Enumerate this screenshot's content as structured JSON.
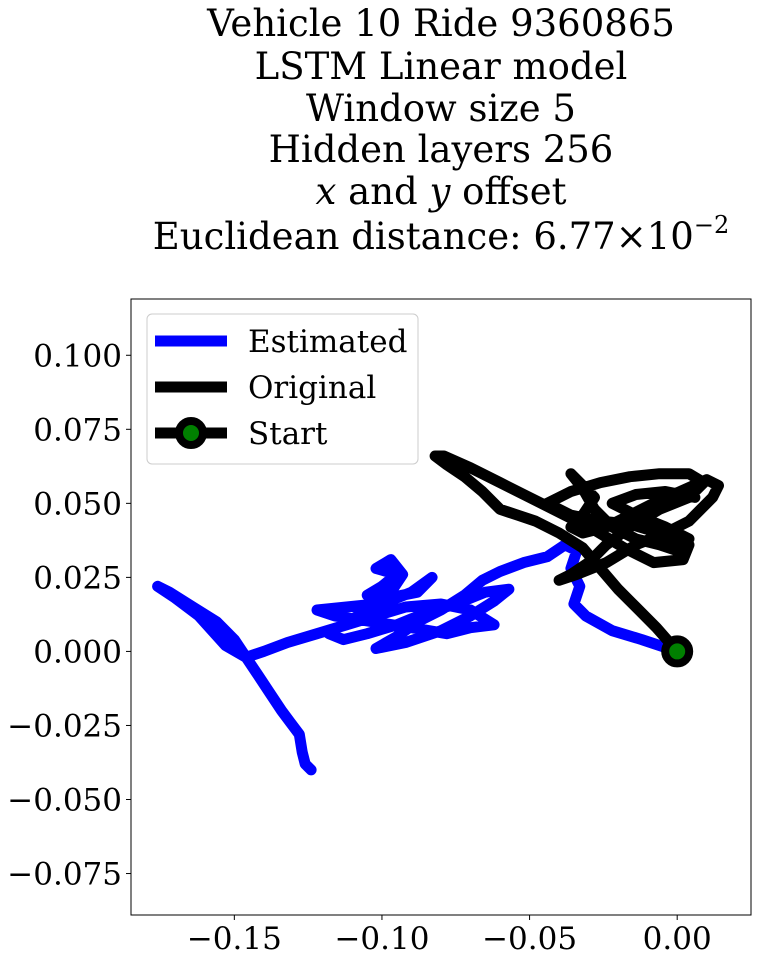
{
  "chart_data": {
    "type": "line",
    "title_lines": [
      "Vehicle 10 Ride 9360865",
      "LSTM Linear model",
      "Window size 5",
      "Hidden layers 256"
    ],
    "offset_line": {
      "x": "x",
      "and": "and",
      "y": "y",
      "rest": "offset"
    },
    "distance_line": {
      "prefix": "Euclidean distance: ",
      "mantissa": "6.77",
      "times": "×",
      "base": "10",
      "exponent": "−2"
    },
    "xlim": [
      -0.185,
      0.025
    ],
    "ylim": [
      -0.089,
      0.119
    ],
    "xticks": [
      {
        "value": -0.15,
        "label": "−0.15"
      },
      {
        "value": -0.1,
        "label": "−0.10"
      },
      {
        "value": -0.05,
        "label": "−0.05"
      },
      {
        "value": 0.0,
        "label": "0.00"
      }
    ],
    "yticks": [
      {
        "value": 0.1,
        "label": "0.100"
      },
      {
        "value": 0.075,
        "label": "0.075"
      },
      {
        "value": 0.05,
        "label": "0.050"
      },
      {
        "value": 0.025,
        "label": "0.025"
      },
      {
        "value": 0.0,
        "label": "0.000"
      },
      {
        "value": -0.025,
        "label": "−0.025"
      },
      {
        "value": -0.05,
        "label": "−0.050"
      },
      {
        "value": -0.075,
        "label": "−0.075"
      }
    ],
    "grid": false,
    "legend_position": "top-left",
    "legend": [
      {
        "label": "Estimated",
        "color": "#0000ff",
        "marker": "none"
      },
      {
        "label": "Original",
        "color": "#000000",
        "marker": "none"
      },
      {
        "label": "Start",
        "color": "#000000",
        "marker": "circle",
        "marker_face": "#008000"
      }
    ],
    "series": [
      {
        "color": "#0000ff",
        "points": [
          [
            0.0,
            0.0
          ],
          [
            -0.012,
            0.004
          ],
          [
            -0.022,
            0.007
          ],
          [
            -0.031,
            0.012
          ],
          [
            -0.035,
            0.016
          ],
          [
            -0.033,
            0.022
          ],
          [
            -0.036,
            0.028
          ],
          [
            -0.034,
            0.034
          ],
          [
            -0.038,
            0.036
          ],
          [
            -0.044,
            0.032
          ],
          [
            -0.052,
            0.03
          ],
          [
            -0.06,
            0.027
          ],
          [
            -0.066,
            0.024
          ],
          [
            -0.072,
            0.019
          ],
          [
            -0.08,
            0.014
          ],
          [
            -0.088,
            0.01
          ],
          [
            -0.095,
            0.005
          ],
          [
            -0.102,
            0.001
          ],
          [
            -0.092,
            0.003
          ],
          [
            -0.08,
            0.007
          ],
          [
            -0.07,
            0.012
          ],
          [
            -0.062,
            0.017
          ],
          [
            -0.057,
            0.021
          ],
          [
            -0.065,
            0.02
          ],
          [
            -0.075,
            0.016
          ],
          [
            -0.085,
            0.013
          ],
          [
            -0.095,
            0.009
          ],
          [
            -0.105,
            0.006
          ],
          [
            -0.113,
            0.004
          ],
          [
            -0.118,
            0.006
          ],
          [
            -0.11,
            0.011
          ],
          [
            -0.1,
            0.016
          ],
          [
            -0.09,
            0.02
          ],
          [
            -0.083,
            0.025
          ],
          [
            -0.088,
            0.02
          ],
          [
            -0.098,
            0.018
          ],
          [
            -0.105,
            0.019
          ],
          [
            -0.1,
            0.022
          ],
          [
            -0.095,
            0.026
          ],
          [
            -0.102,
            0.028
          ],
          [
            -0.097,
            0.031
          ],
          [
            -0.093,
            0.026
          ],
          [
            -0.097,
            0.02
          ],
          [
            -0.102,
            0.016
          ],
          [
            -0.112,
            0.015
          ],
          [
            -0.122,
            0.014
          ],
          [
            -0.116,
            0.012
          ],
          [
            -0.103,
            0.01
          ],
          [
            -0.09,
            0.008
          ],
          [
            -0.078,
            0.006
          ],
          [
            -0.07,
            0.008
          ],
          [
            -0.062,
            0.009
          ],
          [
            -0.07,
            0.014
          ],
          [
            -0.08,
            0.016
          ],
          [
            -0.092,
            0.015
          ],
          [
            -0.102,
            0.012
          ],
          [
            -0.112,
            0.009
          ],
          [
            -0.122,
            0.006
          ],
          [
            -0.132,
            0.003
          ],
          [
            -0.14,
            0.0
          ],
          [
            -0.146,
            -0.002
          ],
          [
            -0.153,
            0.002
          ],
          [
            -0.162,
            0.012
          ],
          [
            -0.17,
            0.018
          ],
          [
            -0.176,
            0.022
          ],
          [
            -0.172,
            0.02
          ],
          [
            -0.164,
            0.015
          ],
          [
            -0.156,
            0.01
          ],
          [
            -0.15,
            0.004
          ],
          [
            -0.146,
            -0.002
          ],
          [
            -0.142,
            -0.008
          ],
          [
            -0.138,
            -0.014
          ],
          [
            -0.134,
            -0.02
          ],
          [
            -0.131,
            -0.024
          ],
          [
            -0.128,
            -0.028
          ],
          [
            -0.127,
            -0.034
          ],
          [
            -0.126,
            -0.038
          ],
          [
            -0.124,
            -0.04
          ]
        ]
      },
      {
        "color": "#000000",
        "points": [
          [
            0.0,
            0.0
          ],
          [
            -0.007,
            0.008
          ],
          [
            -0.014,
            0.015
          ],
          [
            -0.02,
            0.021
          ],
          [
            -0.026,
            0.028
          ],
          [
            -0.032,
            0.035
          ],
          [
            -0.04,
            0.04
          ],
          [
            -0.048,
            0.044
          ],
          [
            -0.054,
            0.046
          ],
          [
            -0.06,
            0.048
          ],
          [
            -0.066,
            0.054
          ],
          [
            -0.072,
            0.059
          ],
          [
            -0.078,
            0.063
          ],
          [
            -0.082,
            0.066
          ],
          [
            -0.079,
            0.066
          ],
          [
            -0.07,
            0.062
          ],
          [
            -0.06,
            0.057
          ],
          [
            -0.052,
            0.053
          ],
          [
            -0.044,
            0.049
          ],
          [
            -0.036,
            0.045
          ],
          [
            -0.028,
            0.041
          ],
          [
            -0.018,
            0.035
          ],
          [
            -0.008,
            0.03
          ],
          [
            0.002,
            0.031
          ],
          [
            0.004,
            0.036
          ],
          [
            -0.006,
            0.04
          ],
          [
            -0.016,
            0.043
          ],
          [
            -0.026,
            0.044
          ],
          [
            -0.036,
            0.046
          ],
          [
            -0.044,
            0.05
          ],
          [
            -0.036,
            0.054
          ],
          [
            -0.026,
            0.057
          ],
          [
            -0.016,
            0.059
          ],
          [
            -0.006,
            0.06
          ],
          [
            0.004,
            0.06
          ],
          [
            0.009,
            0.057
          ],
          [
            0.004,
            0.052
          ],
          [
            -0.006,
            0.048
          ],
          [
            -0.016,
            0.042
          ],
          [
            -0.024,
            0.036
          ],
          [
            -0.03,
            0.03
          ],
          [
            -0.036,
            0.026
          ],
          [
            -0.04,
            0.024
          ],
          [
            -0.034,
            0.026
          ],
          [
            -0.024,
            0.03
          ],
          [
            -0.014,
            0.036
          ],
          [
            -0.004,
            0.04
          ],
          [
            0.004,
            0.044
          ],
          [
            0.012,
            0.052
          ],
          [
            0.014,
            0.056
          ],
          [
            0.01,
            0.058
          ],
          [
            0.001,
            0.054
          ],
          [
            -0.008,
            0.05
          ],
          [
            -0.016,
            0.046
          ],
          [
            -0.024,
            0.042
          ],
          [
            -0.032,
            0.04
          ],
          [
            -0.036,
            0.042
          ],
          [
            -0.032,
            0.046
          ],
          [
            -0.028,
            0.052
          ],
          [
            -0.034,
            0.058
          ],
          [
            -0.036,
            0.06
          ],
          [
            -0.032,
            0.055
          ],
          [
            -0.028,
            0.048
          ],
          [
            -0.022,
            0.042
          ],
          [
            -0.014,
            0.038
          ],
          [
            -0.006,
            0.036
          ],
          [
            0.0,
            0.034
          ],
          [
            0.004,
            0.038
          ],
          [
            -0.004,
            0.042
          ],
          [
            -0.014,
            0.046
          ],
          [
            -0.022,
            0.05
          ],
          [
            -0.014,
            0.053
          ],
          [
            -0.004,
            0.054
          ],
          [
            0.006,
            0.052
          ]
        ]
      }
    ],
    "start_point": {
      "x": 0.0,
      "y": 0.0,
      "edge_color": "#000000",
      "face_color": "#008000"
    }
  }
}
